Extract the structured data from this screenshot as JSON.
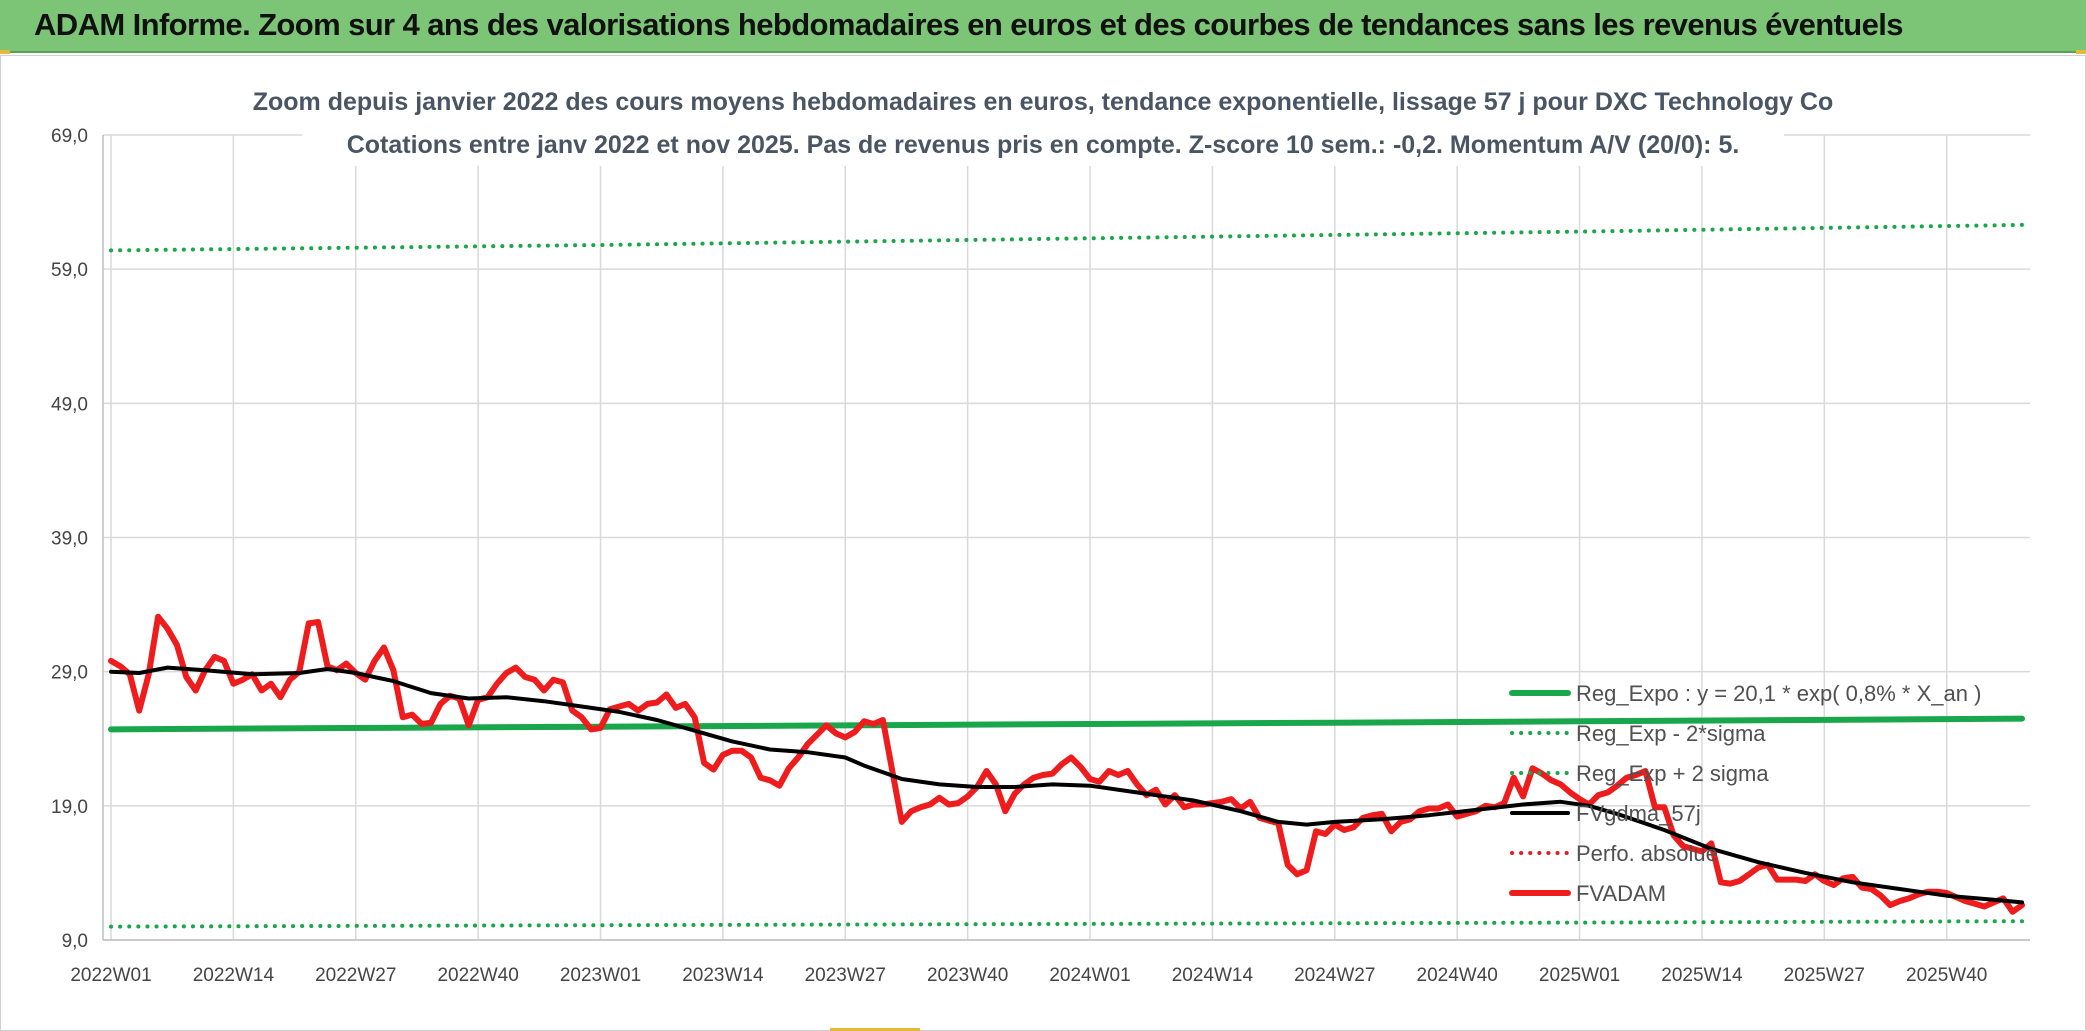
{
  "header": {
    "title": "ADAM Informe. Zoom sur 4 ans des valorisations hebdomadaires en euros et des courbes de tendances sans les revenus éventuels"
  },
  "chart_data": {
    "type": "line",
    "title_line1": "Zoom depuis janvier 2022 des cours moyens hebdomadaires en euros, tendance exponentielle, lissage 57 j pour DXC Technology Co",
    "title_line2": "Cotations entre janv 2022 et nov 2025. Pas de revenus pris en compte. Z-score 10 sem.: -0,2. Momentum A/V (20/0): 5.",
    "ylim": [
      9,
      69
    ],
    "yticks": [
      9,
      19,
      29,
      39,
      49,
      59,
      69
    ],
    "ytick_labels": [
      "9,0",
      "19,0",
      "29,0",
      "39,0",
      "49,0",
      "59,0",
      "69,0"
    ],
    "x_week_count": 204,
    "xticks": [
      {
        "index": 0,
        "label": "2022W01"
      },
      {
        "index": 13,
        "label": "2022W14"
      },
      {
        "index": 26,
        "label": "2022W27"
      },
      {
        "index": 39,
        "label": "2022W40"
      },
      {
        "index": 52,
        "label": "2023W01"
      },
      {
        "index": 65,
        "label": "2023W14"
      },
      {
        "index": 78,
        "label": "2023W27"
      },
      {
        "index": 91,
        "label": "2023W40"
      },
      {
        "index": 104,
        "label": "2024W01"
      },
      {
        "index": 117,
        "label": "2024W14"
      },
      {
        "index": 130,
        "label": "2024W27"
      },
      {
        "index": 143,
        "label": "2024W40"
      },
      {
        "index": 156,
        "label": "2025W01"
      },
      {
        "index": 169,
        "label": "2025W14"
      },
      {
        "index": 182,
        "label": "2025W27"
      },
      {
        "index": 195,
        "label": "2025W40"
      }
    ],
    "series": [
      {
        "name": "Reg_Expo : y = 20,1 * exp( 0,8% *  X_an )",
        "color": "#1aa64a",
        "style": "solid-thick",
        "points": [
          [
            0,
            24.7
          ],
          [
            25,
            24.8
          ],
          [
            52,
            24.9
          ],
          [
            80,
            25.0
          ],
          [
            104,
            25.1
          ],
          [
            130,
            25.2
          ],
          [
            156,
            25.3
          ],
          [
            180,
            25.4
          ],
          [
            203,
            25.5
          ]
        ]
      },
      {
        "name": "Reg_Exp - 2*sigma",
        "color": "#1aa64a",
        "style": "dotted",
        "points": [
          [
            0,
            10.0
          ],
          [
            52,
            10.1
          ],
          [
            104,
            10.2
          ],
          [
            156,
            10.3
          ],
          [
            203,
            10.4
          ]
        ]
      },
      {
        "name": "Reg_Exp + 2 sigma",
        "color": "#1aa64a",
        "style": "dotted",
        "points": [
          [
            0,
            60.4
          ],
          [
            52,
            60.8
          ],
          [
            104,
            61.3
          ],
          [
            156,
            61.8
          ],
          [
            203,
            62.3
          ]
        ]
      },
      {
        "name": "FVgdma_57j",
        "color": "#000000",
        "style": "solid",
        "points": [
          [
            0,
            29.0
          ],
          [
            3,
            28.9
          ],
          [
            6,
            29.3
          ],
          [
            10,
            29.1
          ],
          [
            15,
            28.8
          ],
          [
            20,
            28.9
          ],
          [
            23,
            29.2
          ],
          [
            26,
            28.9
          ],
          [
            30,
            28.3
          ],
          [
            34,
            27.4
          ],
          [
            38,
            27.0
          ],
          [
            42,
            27.1
          ],
          [
            46,
            26.8
          ],
          [
            50,
            26.4
          ],
          [
            54,
            26.0
          ],
          [
            58,
            25.4
          ],
          [
            62,
            24.6
          ],
          [
            66,
            23.8
          ],
          [
            70,
            23.2
          ],
          [
            74,
            23.0
          ],
          [
            78,
            22.6
          ],
          [
            80,
            22.0
          ],
          [
            84,
            21.0
          ],
          [
            88,
            20.6
          ],
          [
            92,
            20.4
          ],
          [
            96,
            20.4
          ],
          [
            100,
            20.6
          ],
          [
            104,
            20.5
          ],
          [
            110,
            19.9
          ],
          [
            115,
            19.4
          ],
          [
            120,
            18.6
          ],
          [
            124,
            17.8
          ],
          [
            127,
            17.6
          ],
          [
            130,
            17.8
          ],
          [
            135,
            18.0
          ],
          [
            140,
            18.3
          ],
          [
            145,
            18.7
          ],
          [
            150,
            19.1
          ],
          [
            154,
            19.3
          ],
          [
            157,
            19.0
          ],
          [
            160,
            18.4
          ],
          [
            165,
            17.2
          ],
          [
            170,
            15.8
          ],
          [
            175,
            14.8
          ],
          [
            180,
            14.0
          ],
          [
            185,
            13.3
          ],
          [
            190,
            12.8
          ],
          [
            195,
            12.3
          ],
          [
            200,
            12.0
          ],
          [
            203,
            11.8
          ]
        ]
      },
      {
        "name": "Perfo. absolue",
        "color": "#e02020",
        "style": "dotted",
        "points": []
      },
      {
        "name": "FVADAM",
        "color": "#ee1c1c",
        "style": "solid-thick",
        "points": [
          [
            0,
            29.8
          ],
          [
            1,
            29.4
          ],
          [
            2,
            28.8
          ],
          [
            3,
            26.1
          ],
          [
            4,
            28.8
          ],
          [
            5,
            33.1
          ],
          [
            6,
            32.2
          ],
          [
            7,
            31.0
          ],
          [
            8,
            28.6
          ],
          [
            9,
            27.6
          ],
          [
            10,
            29.1
          ],
          [
            11,
            30.1
          ],
          [
            12,
            29.8
          ],
          [
            13,
            28.1
          ],
          [
            14,
            28.4
          ],
          [
            15,
            28.8
          ],
          [
            16,
            27.6
          ],
          [
            17,
            28.1
          ],
          [
            18,
            27.1
          ],
          [
            19,
            28.4
          ],
          [
            20,
            29.0
          ],
          [
            21,
            32.6
          ],
          [
            22,
            32.7
          ],
          [
            23,
            29.4
          ],
          [
            24,
            29.1
          ],
          [
            25,
            29.6
          ],
          [
            26,
            28.9
          ],
          [
            27,
            28.4
          ],
          [
            28,
            29.8
          ],
          [
            29,
            30.8
          ],
          [
            30,
            29.1
          ],
          [
            31,
            25.6
          ],
          [
            32,
            25.8
          ],
          [
            33,
            25.1
          ],
          [
            34,
            25.2
          ],
          [
            35,
            26.6
          ],
          [
            36,
            27.2
          ],
          [
            37,
            27.0
          ],
          [
            38,
            25.0
          ],
          [
            39,
            26.9
          ],
          [
            40,
            27.1
          ],
          [
            41,
            28.1
          ],
          [
            42,
            28.9
          ],
          [
            43,
            29.3
          ],
          [
            44,
            28.6
          ],
          [
            45,
            28.4
          ],
          [
            46,
            27.6
          ],
          [
            47,
            28.4
          ],
          [
            48,
            28.2
          ],
          [
            49,
            26.1
          ],
          [
            50,
            25.6
          ],
          [
            51,
            24.7
          ],
          [
            52,
            24.8
          ],
          [
            53,
            26.2
          ],
          [
            54,
            26.4
          ],
          [
            55,
            26.6
          ],
          [
            56,
            26.1
          ],
          [
            57,
            26.6
          ],
          [
            58,
            26.7
          ],
          [
            59,
            27.3
          ],
          [
            60,
            26.3
          ],
          [
            61,
            26.6
          ],
          [
            62,
            25.6
          ],
          [
            63,
            22.2
          ],
          [
            64,
            21.7
          ],
          [
            65,
            22.8
          ],
          [
            66,
            23.1
          ],
          [
            67,
            23.1
          ],
          [
            68,
            22.6
          ],
          [
            69,
            21.1
          ],
          [
            70,
            20.9
          ],
          [
            71,
            20.5
          ],
          [
            72,
            21.8
          ],
          [
            73,
            22.6
          ],
          [
            74,
            23.6
          ],
          [
            75,
            24.3
          ],
          [
            76,
            25.0
          ],
          [
            77,
            24.4
          ],
          [
            78,
            24.1
          ],
          [
            79,
            24.5
          ],
          [
            80,
            25.3
          ],
          [
            81,
            25.1
          ],
          [
            82,
            25.4
          ],
          [
            83,
            21.6
          ],
          [
            84,
            17.8
          ],
          [
            85,
            18.6
          ],
          [
            86,
            18.9
          ],
          [
            87,
            19.1
          ],
          [
            88,
            19.6
          ],
          [
            89,
            19.1
          ],
          [
            90,
            19.2
          ],
          [
            91,
            19.7
          ],
          [
            92,
            20.4
          ],
          [
            93,
            21.6
          ],
          [
            94,
            20.6
          ],
          [
            95,
            18.6
          ],
          [
            96,
            19.9
          ],
          [
            97,
            20.6
          ],
          [
            98,
            21.1
          ],
          [
            99,
            21.3
          ],
          [
            100,
            21.4
          ],
          [
            101,
            22.1
          ],
          [
            102,
            22.6
          ],
          [
            103,
            21.9
          ],
          [
            104,
            21.0
          ],
          [
            105,
            20.8
          ],
          [
            106,
            21.6
          ],
          [
            107,
            21.3
          ],
          [
            108,
            21.6
          ],
          [
            109,
            20.6
          ],
          [
            110,
            19.8
          ],
          [
            111,
            20.2
          ],
          [
            112,
            19.1
          ],
          [
            113,
            19.8
          ],
          [
            114,
            18.9
          ],
          [
            115,
            19.1
          ],
          [
            116,
            19.1
          ],
          [
            117,
            19.2
          ],
          [
            118,
            19.3
          ],
          [
            119,
            19.5
          ],
          [
            120,
            18.8
          ],
          [
            121,
            19.3
          ],
          [
            122,
            18.1
          ],
          [
            123,
            17.9
          ],
          [
            124,
            17.7
          ],
          [
            125,
            14.6
          ],
          [
            126,
            13.9
          ],
          [
            127,
            14.2
          ],
          [
            128,
            17.1
          ],
          [
            129,
            16.9
          ],
          [
            130,
            17.6
          ],
          [
            131,
            17.2
          ],
          [
            132,
            17.4
          ],
          [
            133,
            18.1
          ],
          [
            134,
            18.3
          ],
          [
            135,
            18.4
          ],
          [
            136,
            17.1
          ],
          [
            137,
            17.8
          ],
          [
            138,
            18.0
          ],
          [
            139,
            18.6
          ],
          [
            140,
            18.8
          ],
          [
            141,
            18.8
          ],
          [
            142,
            19.1
          ],
          [
            143,
            18.2
          ],
          [
            144,
            18.4
          ],
          [
            145,
            18.6
          ],
          [
            146,
            19.0
          ],
          [
            147,
            18.9
          ],
          [
            148,
            19.2
          ],
          [
            149,
            21.1
          ],
          [
            150,
            19.7
          ],
          [
            151,
            21.8
          ],
          [
            152,
            21.4
          ],
          [
            153,
            20.9
          ],
          [
            154,
            20.6
          ],
          [
            155,
            20.0
          ],
          [
            156,
            19.5
          ],
          [
            157,
            19.1
          ],
          [
            158,
            19.8
          ],
          [
            159,
            20.0
          ],
          [
            160,
            20.5
          ],
          [
            161,
            21.1
          ],
          [
            162,
            21.3
          ],
          [
            163,
            21.6
          ],
          [
            164,
            18.9
          ],
          [
            165,
            18.9
          ],
          [
            166,
            16.8
          ],
          [
            167,
            16.0
          ],
          [
            168,
            15.8
          ],
          [
            169,
            15.6
          ],
          [
            170,
            16.2
          ],
          [
            171,
            13.3
          ],
          [
            172,
            13.2
          ],
          [
            173,
            13.4
          ],
          [
            174,
            13.9
          ],
          [
            175,
            14.4
          ],
          [
            176,
            14.6
          ],
          [
            177,
            13.5
          ],
          [
            178,
            13.5
          ],
          [
            179,
            13.5
          ],
          [
            180,
            13.4
          ],
          [
            181,
            13.9
          ],
          [
            182,
            13.4
          ],
          [
            183,
            13.1
          ],
          [
            184,
            13.6
          ],
          [
            185,
            13.7
          ],
          [
            186,
            12.9
          ],
          [
            187,
            12.8
          ],
          [
            188,
            12.3
          ],
          [
            189,
            11.6
          ],
          [
            190,
            11.9
          ],
          [
            191,
            12.1
          ],
          [
            192,
            12.4
          ],
          [
            193,
            12.6
          ],
          [
            194,
            12.6
          ],
          [
            195,
            12.5
          ],
          [
            196,
            12.2
          ],
          [
            197,
            11.9
          ],
          [
            198,
            11.7
          ],
          [
            199,
            11.5
          ],
          [
            200,
            11.8
          ],
          [
            201,
            12.1
          ],
          [
            202,
            11.1
          ],
          [
            203,
            11.6
          ]
        ]
      }
    ],
    "legend": {
      "placement": "right-lower"
    }
  }
}
